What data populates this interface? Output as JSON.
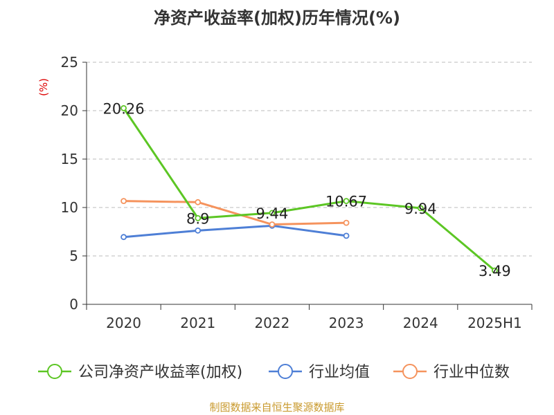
{
  "chart_data": {
    "type": "line",
    "title": "净资产收益率(加权)历年情况(%)",
    "ylabel": "(%)",
    "xlabel": "",
    "categories": [
      "2020",
      "2021",
      "2022",
      "2023",
      "2024",
      "2025H1"
    ],
    "ylim": [
      0,
      25
    ],
    "yticks": [
      0,
      5,
      10,
      15,
      20,
      25
    ],
    "grid": true,
    "legend_position": "bottom",
    "series": [
      {
        "name": "公司净资产收益率(加权)",
        "color": "#5cc624",
        "values": [
          20.26,
          8.9,
          9.44,
          10.67,
          9.94,
          3.49
        ],
        "labels": [
          "20.26",
          "8.9",
          "9.44",
          "10.67",
          "9.94",
          "3.49"
        ]
      },
      {
        "name": "行业均值",
        "color": "#4e7fd6",
        "values": [
          6.95,
          7.62,
          8.12,
          7.08,
          null,
          null
        ]
      },
      {
        "name": "行业中位数",
        "color": "#f5935d",
        "values": [
          10.67,
          10.55,
          8.25,
          8.42,
          null,
          null
        ]
      }
    ]
  },
  "colors": {
    "axis": "#333333",
    "grid": "#bbbbbb",
    "ylabel": "#dd0000"
  },
  "footer": {
    "source": "制图数据来自恒生聚源数据库"
  }
}
